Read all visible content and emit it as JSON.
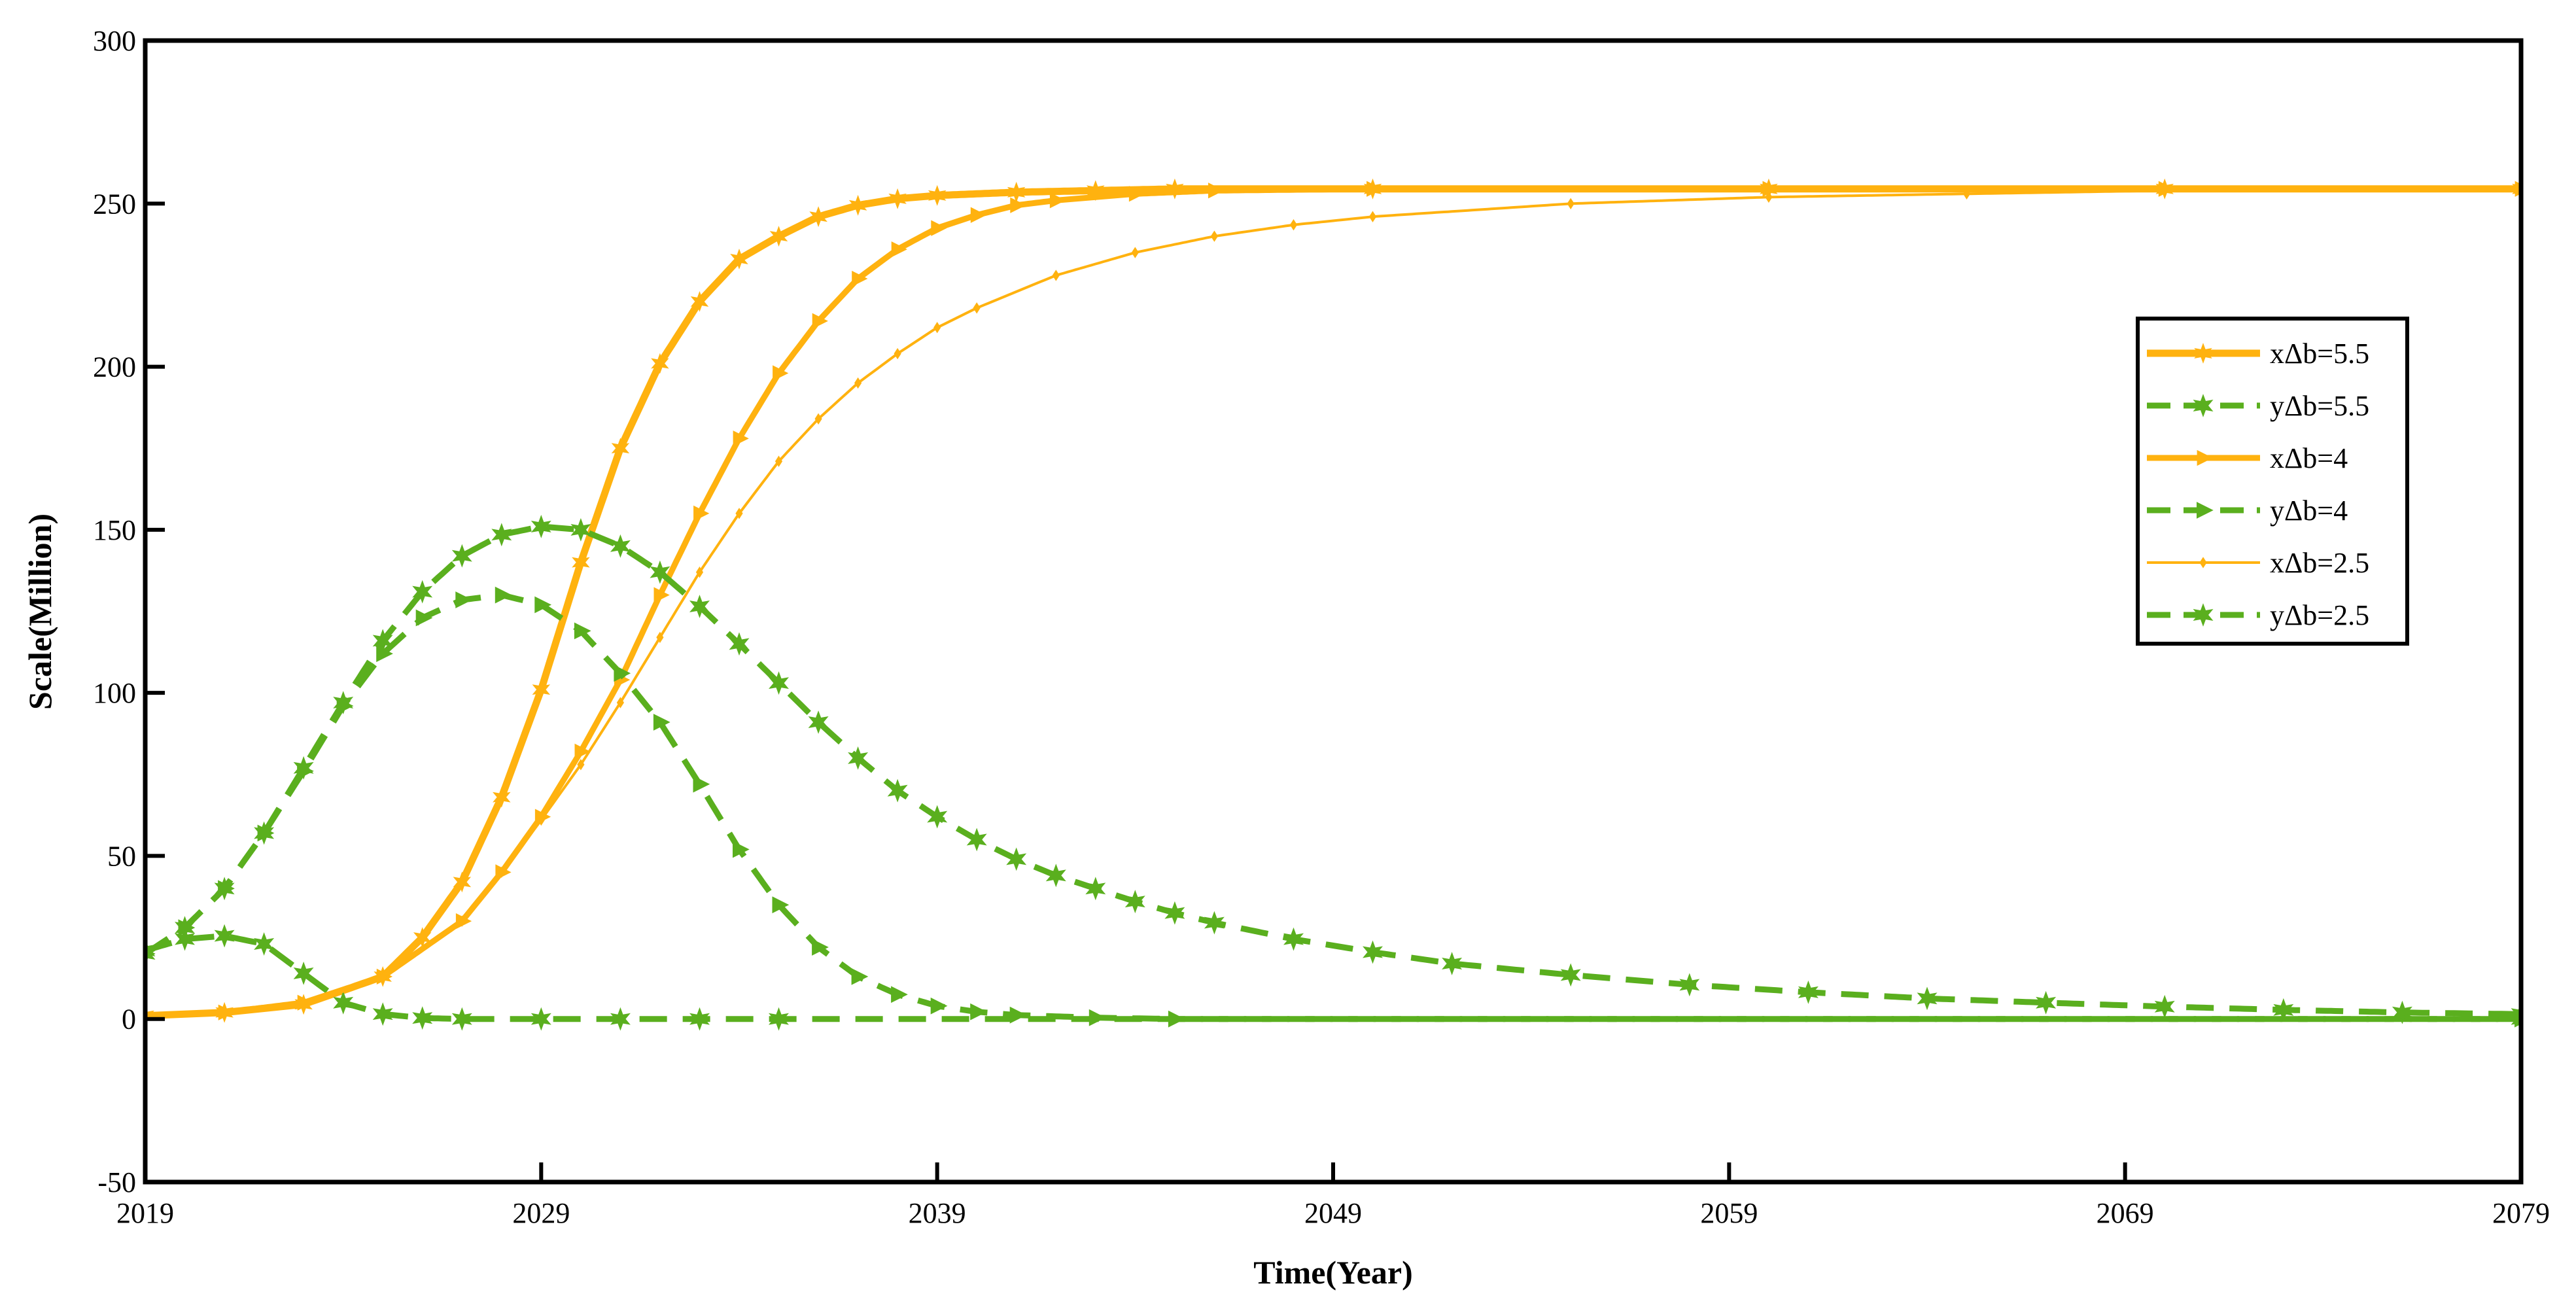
{
  "chart_data": {
    "type": "line",
    "title": "",
    "xlabel": "Time(Year)",
    "ylabel": "Scale(Million)",
    "xlim": [
      2019,
      2079
    ],
    "ylim": [
      -50,
      300
    ],
    "xticks": [
      "2019",
      "2029",
      "2039",
      "2049",
      "2059",
      "2069",
      "2079"
    ],
    "yticks": [
      "-50",
      "0",
      "50",
      "100",
      "150",
      "200",
      "250",
      "300"
    ],
    "grid": false,
    "legend_position": "right",
    "colors": {
      "x": "#FFB20F",
      "y": "#5AAF1E"
    },
    "series": [
      {
        "name": "xΔb=5.5",
        "style": "solid",
        "marker": "star",
        "x": [
          2019,
          2021,
          2023,
          2025,
          2026,
          2027,
          2028,
          2029,
          2030,
          2031,
          2032,
          2033,
          2034,
          2035,
          2036,
          2037,
          2038,
          2039,
          2041,
          2043,
          2045,
          2050,
          2060,
          2070,
          2079
        ],
        "y": [
          1,
          2,
          4.5,
          13,
          25,
          42,
          68,
          101,
          140,
          175,
          201,
          220,
          233,
          240,
          246,
          249.5,
          251.5,
          252.5,
          253.5,
          254,
          254.5,
          254.5,
          254.5,
          254.5,
          254.5
        ]
      },
      {
        "name": "yΔb=5.5",
        "style": "dashed",
        "marker": "star",
        "x": [
          2019,
          2020,
          2021,
          2022,
          2023,
          2024,
          2025,
          2026,
          2027,
          2029,
          2031,
          2033,
          2035,
          2079
        ],
        "y": [
          21,
          24.5,
          25.5,
          23,
          14,
          5,
          1.5,
          0.3,
          0,
          0,
          0,
          0,
          0,
          0
        ]
      },
      {
        "name": "xΔb=4",
        "style": "solid",
        "marker": "triangle-right",
        "x": [
          2019,
          2021,
          2023,
          2025,
          2027,
          2028,
          2029,
          2030,
          2031,
          2032,
          2033,
          2034,
          2035,
          2036,
          2037,
          2038,
          2039,
          2040,
          2041,
          2042,
          2044,
          2046,
          2050,
          2060,
          2070,
          2079
        ],
        "y": [
          1,
          2,
          5,
          13,
          30,
          45,
          62,
          82,
          104,
          130,
          155,
          178,
          198,
          214,
          227,
          236,
          242.5,
          246.5,
          249.5,
          251,
          253,
          254,
          254.5,
          254.5,
          254.5,
          254.5
        ]
      },
      {
        "name": "yΔb=4",
        "style": "dashed",
        "marker": "triangle-right",
        "x": [
          2019,
          2020,
          2021,
          2022,
          2023,
          2024,
          2025,
          2026,
          2027,
          2028,
          2029,
          2030,
          2031,
          2032,
          2033,
          2034,
          2035,
          2036,
          2037,
          2038,
          2039,
          2040,
          2041,
          2043,
          2045,
          2079
        ],
        "y": [
          20,
          28,
          40,
          57,
          76,
          96,
          112,
          123,
          128.5,
          130,
          127,
          119,
          106,
          91,
          72,
          52,
          35,
          22,
          13,
          7.5,
          4,
          2.2,
          1.2,
          0.4,
          0,
          0
        ]
      },
      {
        "name": "xΔb=2.5",
        "style": "solid",
        "marker": "diamond",
        "x": [
          2019,
          2021,
          2023,
          2025,
          2027,
          2028,
          2029,
          2030,
          2031,
          2032,
          2033,
          2034,
          2035,
          2036,
          2037,
          2038,
          2039,
          2040,
          2042,
          2044,
          2046,
          2048,
          2050,
          2055,
          2060,
          2065,
          2070,
          2079
        ],
        "y": [
          1,
          2,
          5,
          13,
          30,
          45,
          61,
          78,
          97,
          117,
          137,
          155,
          171,
          184,
          195,
          204,
          212,
          218,
          228,
          235,
          240,
          243.5,
          246,
          250,
          252,
          253,
          254,
          254.5
        ]
      },
      {
        "name": "yΔb=2.5",
        "style": "dashed",
        "marker": "star",
        "x": [
          2019,
          2020,
          2021,
          2022,
          2023,
          2024,
          2025,
          2026,
          2027,
          2028,
          2029,
          2030,
          2031,
          2032,
          2033,
          2034,
          2035,
          2036,
          2037,
          2038,
          2039,
          2040,
          2041,
          2042,
          2043,
          2044,
          2045,
          2046,
          2048,
          2050,
          2052,
          2055,
          2058,
          2061,
          2064,
          2067,
          2070,
          2073,
          2076,
          2079
        ],
        "y": [
          20,
          28,
          40,
          57,
          77,
          97,
          116,
          131,
          142,
          148.5,
          151,
          150,
          145,
          137,
          126.5,
          115,
          103,
          91,
          80,
          70,
          62,
          55,
          49,
          44,
          40,
          36,
          32.5,
          29.5,
          24.5,
          20.5,
          17,
          13.5,
          10.5,
          8.2,
          6.3,
          5,
          3.8,
          2.8,
          2,
          1.5
        ]
      }
    ]
  }
}
